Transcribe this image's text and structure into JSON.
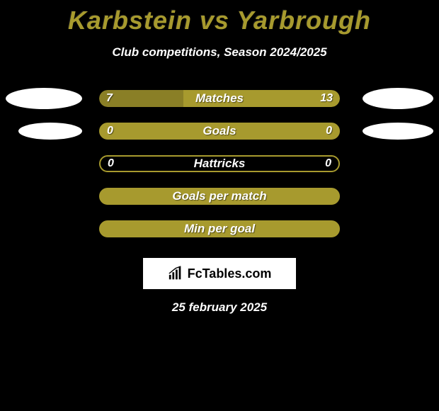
{
  "header": {
    "title": "Karbstein vs Yarbrough",
    "subtitle": "Club competitions, Season 2024/2025"
  },
  "colors": {
    "accent": "#a79a2e",
    "accent_dark": "#8a7f26",
    "background": "#000000",
    "oval": "#ffffff",
    "text": "#ffffff"
  },
  "stats": [
    {
      "label": "Matches",
      "left_val": "7",
      "right_val": "13",
      "type": "split",
      "left_pct": 35,
      "right_pct": 65,
      "show_left_oval": true,
      "show_right_oval": true
    },
    {
      "label": "Goals",
      "left_val": "0",
      "right_val": "0",
      "type": "solid",
      "show_left_oval": true,
      "show_right_oval": true
    },
    {
      "label": "Hattricks",
      "left_val": "0",
      "right_val": "0",
      "type": "hollow",
      "show_left_oval": false,
      "show_right_oval": false
    },
    {
      "label": "Goals per match",
      "left_val": "",
      "right_val": "",
      "type": "solid",
      "show_left_oval": false,
      "show_right_oval": false
    },
    {
      "label": "Min per goal",
      "left_val": "",
      "right_val": "",
      "type": "solid",
      "show_left_oval": false,
      "show_right_oval": false
    }
  ],
  "logo": {
    "text": "FcTables.com"
  },
  "date": "25 february 2025"
}
